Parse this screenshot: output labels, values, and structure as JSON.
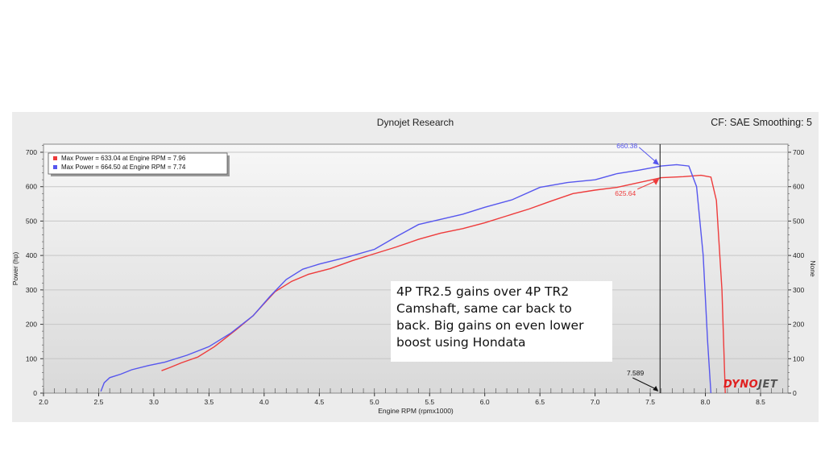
{
  "header": {
    "title": "Dynojet Research",
    "cf_text": "CF: SAE Smoothing: 5"
  },
  "note": {
    "text": "4P TR2.5 gains over 4P TR2 Camshaft, same car back to back. Big gains on even lower boost using Hondata"
  },
  "logo": {
    "part1": "DYNO",
    "part2": "JET"
  },
  "colors": {
    "red": "#ee3b3b",
    "blue": "#5656ee"
  },
  "chart_data": {
    "type": "line",
    "title": "Dynojet Research",
    "xlabel": "Engine RPM (rpmx1000)",
    "ylabel": "Power (hp)",
    "y2label": "None",
    "xlim": [
      2.0,
      8.75
    ],
    "ylim": [
      0,
      720
    ],
    "x_ticks": [
      "2.0",
      "2.5",
      "3.0",
      "3.5",
      "4.0",
      "4.5",
      "5.0",
      "5.5",
      "6.0",
      "6.5",
      "7.0",
      "7.5",
      "8.0",
      "8.5"
    ],
    "y_ticks": [
      "0",
      "100",
      "200",
      "300",
      "400",
      "500",
      "600",
      "700"
    ],
    "grid": true,
    "legend_position": "top-left",
    "legend": [
      {
        "text": "Max Power = 633.04 at Engine RPM = 7.96",
        "color": "#ee3b3b"
      },
      {
        "text": "Max Power = 664.50 at Engine RPM = 7.74",
        "color": "#5656ee"
      }
    ],
    "cursor": {
      "x": 7.589,
      "label": "7.589"
    },
    "annotations": [
      {
        "text": "660.38",
        "x": 7.589,
        "y": 660.38,
        "color": "#5656ee"
      },
      {
        "text": "625.64",
        "x": 7.589,
        "y": 625.64,
        "color": "#ee3b3b"
      }
    ],
    "series": [
      {
        "color": "#ee3b3b",
        "points": [
          [
            3.07,
            65
          ],
          [
            3.15,
            75
          ],
          [
            3.25,
            88
          ],
          [
            3.4,
            105
          ],
          [
            3.55,
            135
          ],
          [
            3.65,
            160
          ],
          [
            3.75,
            185
          ],
          [
            3.9,
            225
          ],
          [
            4.0,
            260
          ],
          [
            4.1,
            295
          ],
          [
            4.25,
            325
          ],
          [
            4.4,
            345
          ],
          [
            4.6,
            362
          ],
          [
            4.8,
            385
          ],
          [
            5.0,
            405
          ],
          [
            5.2,
            425
          ],
          [
            5.4,
            447
          ],
          [
            5.6,
            465
          ],
          [
            5.8,
            478
          ],
          [
            6.0,
            495
          ],
          [
            6.2,
            515
          ],
          [
            6.4,
            535
          ],
          [
            6.6,
            558
          ],
          [
            6.8,
            580
          ],
          [
            7.0,
            590
          ],
          [
            7.2,
            598
          ],
          [
            7.4,
            612
          ],
          [
            7.6,
            626
          ],
          [
            7.8,
            629
          ],
          [
            7.96,
            633
          ],
          [
            8.05,
            628
          ],
          [
            8.1,
            560
          ],
          [
            8.15,
            300
          ],
          [
            8.18,
            0
          ]
        ]
      },
      {
        "color": "#5656ee",
        "points": [
          [
            2.52,
            5
          ],
          [
            2.55,
            30
          ],
          [
            2.6,
            45
          ],
          [
            2.7,
            55
          ],
          [
            2.8,
            68
          ],
          [
            2.95,
            80
          ],
          [
            3.1,
            90
          ],
          [
            3.3,
            110
          ],
          [
            3.5,
            135
          ],
          [
            3.7,
            175
          ],
          [
            3.9,
            225
          ],
          [
            4.05,
            280
          ],
          [
            4.2,
            330
          ],
          [
            4.35,
            360
          ],
          [
            4.5,
            375
          ],
          [
            4.75,
            395
          ],
          [
            5.0,
            418
          ],
          [
            5.2,
            455
          ],
          [
            5.4,
            490
          ],
          [
            5.6,
            505
          ],
          [
            5.8,
            520
          ],
          [
            6.0,
            540
          ],
          [
            6.25,
            562
          ],
          [
            6.5,
            598
          ],
          [
            6.75,
            612
          ],
          [
            7.0,
            620
          ],
          [
            7.2,
            638
          ],
          [
            7.4,
            648
          ],
          [
            7.6,
            660
          ],
          [
            7.74,
            664
          ],
          [
            7.85,
            660
          ],
          [
            7.92,
            600
          ],
          [
            7.98,
            400
          ],
          [
            8.02,
            150
          ],
          [
            8.05,
            0
          ]
        ]
      }
    ]
  }
}
